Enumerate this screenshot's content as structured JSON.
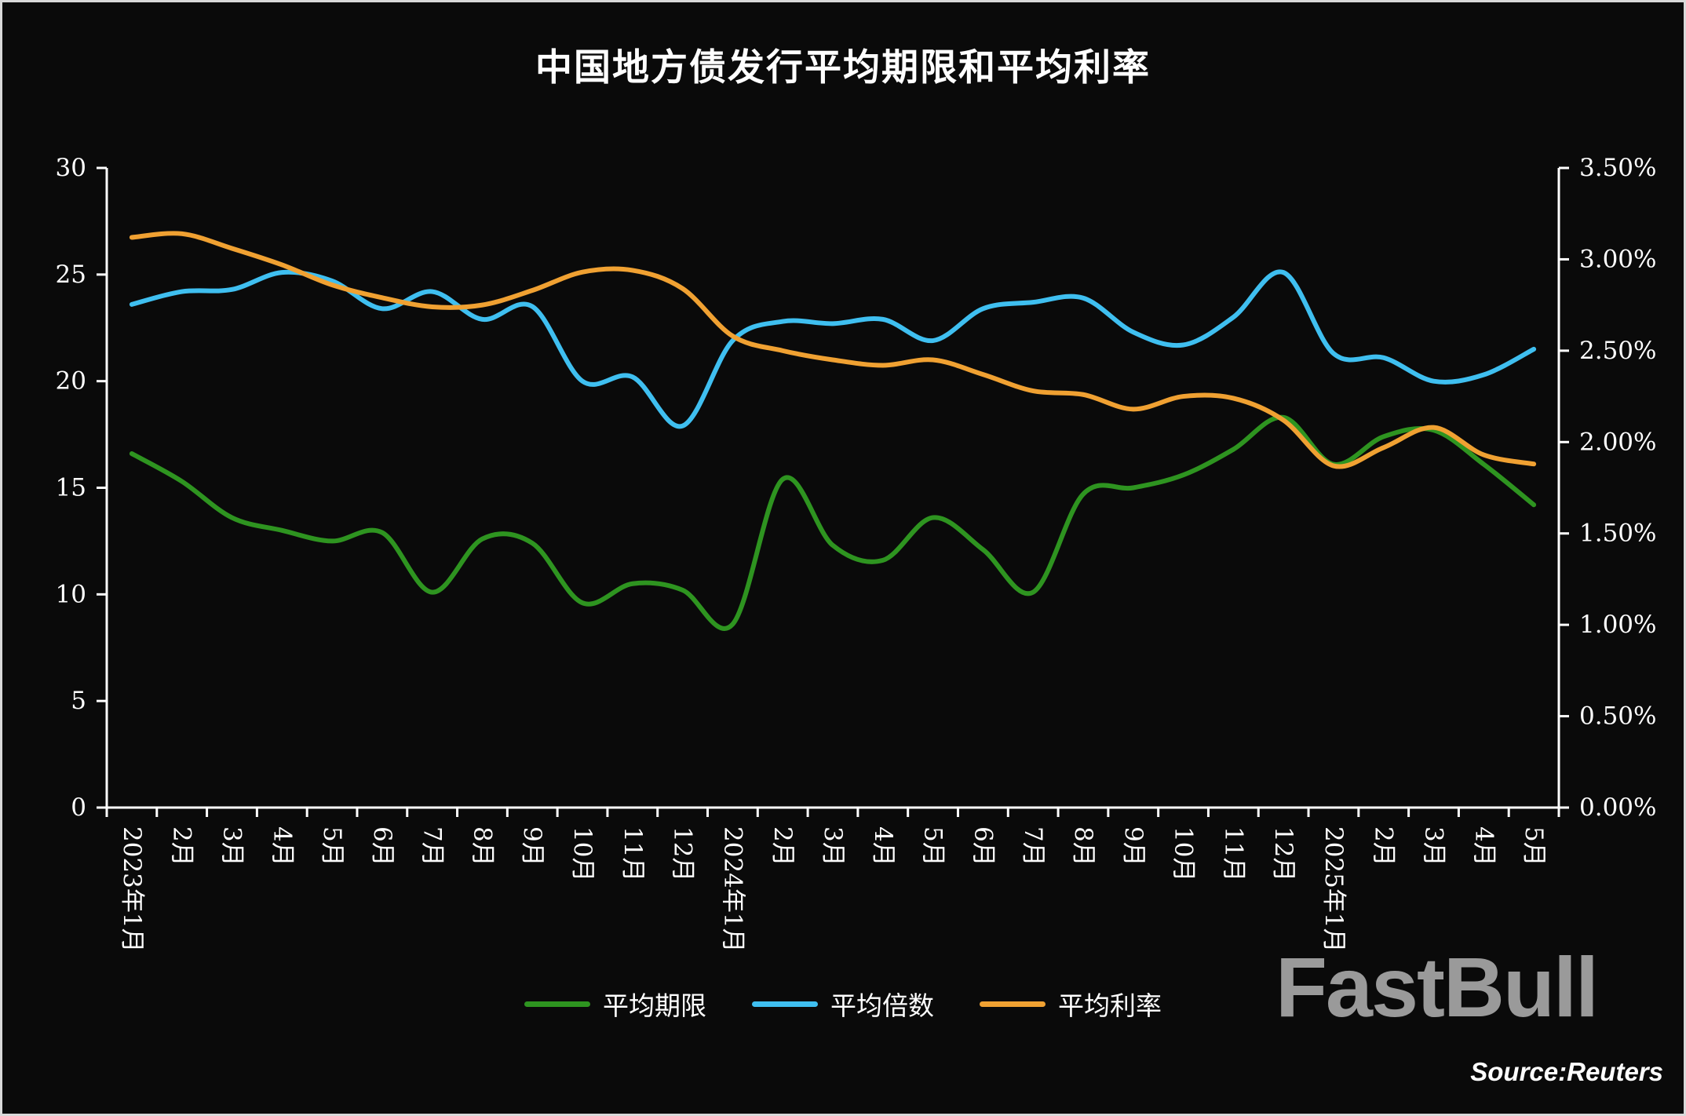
{
  "branding": {
    "watermark": "FastBull",
    "source": "Source:Reuters"
  },
  "chart_data": {
    "type": "line",
    "title": "中国地方债发行平均期限和平均利率",
    "grid": false,
    "legend_position": "bottom",
    "categories": [
      "2023年1月",
      "2月",
      "3月",
      "4月",
      "5月",
      "6月",
      "7月",
      "8月",
      "9月",
      "10月",
      "11月",
      "12月",
      "2024年1月",
      "2月",
      "3月",
      "4月",
      "5月",
      "6月",
      "7月",
      "8月",
      "9月",
      "10月",
      "11月",
      "12月",
      "2025年1月",
      "2月",
      "3月",
      "4月",
      "5月"
    ],
    "left_axis": {
      "min": 0,
      "max": 30,
      "tick_values": [
        0,
        5,
        10,
        15,
        20,
        25,
        30
      ]
    },
    "right_axis": {
      "min": 0,
      "max": 3.5,
      "tick_values": [
        0,
        0.5,
        1,
        1.5,
        2,
        2.5,
        3,
        3.5
      ],
      "tick_labels": [
        "0.00%",
        "0.50%",
        "1.00%",
        "1.50%",
        "2.00%",
        "2.50%",
        "3.00%",
        "3.50%"
      ]
    },
    "series": [
      {
        "id": "maturity",
        "name": "平均期限",
        "axis": "left",
        "color": "#2e9420",
        "values": [
          16.6,
          15.3,
          13.6,
          13.0,
          12.5,
          12.9,
          10.1,
          12.6,
          12.4,
          9.6,
          10.5,
          10.2,
          8.6,
          15.4,
          12.3,
          11.6,
          13.6,
          12.1,
          10.1,
          14.7,
          15.0,
          15.6,
          16.8,
          18.3,
          16.1,
          17.4,
          17.7,
          16.1,
          14.2
        ]
      },
      {
        "id": "multiple",
        "name": "平均倍数",
        "axis": "left",
        "color": "#3fbff0",
        "values": [
          23.6,
          24.2,
          24.3,
          25.1,
          24.7,
          23.4,
          24.2,
          22.9,
          23.5,
          20.0,
          20.2,
          17.9,
          21.9,
          22.8,
          22.7,
          22.9,
          21.9,
          23.4,
          23.7,
          23.9,
          22.3,
          21.7,
          23.0,
          25.1,
          21.3,
          21.1,
          20.0,
          20.3,
          21.5
        ]
      },
      {
        "id": "rate",
        "name": "平均利率",
        "axis": "right",
        "unit": "%",
        "color": "#f0a132",
        "values": [
          3.12,
          3.14,
          3.06,
          2.97,
          2.86,
          2.79,
          2.74,
          2.75,
          2.83,
          2.93,
          2.94,
          2.84,
          2.58,
          2.5,
          2.45,
          2.42,
          2.45,
          2.37,
          2.28,
          2.26,
          2.18,
          2.25,
          2.24,
          2.12,
          1.87,
          1.97,
          2.08,
          1.93,
          1.88
        ]
      }
    ]
  }
}
